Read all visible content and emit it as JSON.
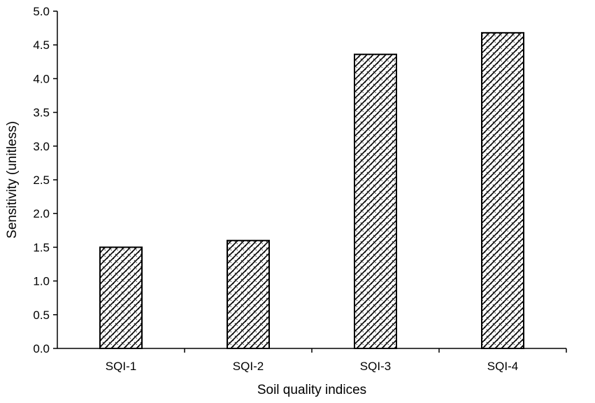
{
  "chart_data": {
    "type": "bar",
    "title": "",
    "xlabel": "Soil quality indices",
    "ylabel": "Sensitivity (unitless)",
    "categories": [
      "SQI-1",
      "SQI-2",
      "SQI-3",
      "SQI-4"
    ],
    "values": [
      1.5,
      1.6,
      4.36,
      4.68
    ],
    "ylim": [
      0,
      5.0
    ],
    "yticks": [
      "0.0",
      "0.5",
      "1.0",
      "1.5",
      "2.0",
      "2.5",
      "3.0",
      "3.5",
      "4.0",
      "4.5",
      "5.0"
    ],
    "grid": false,
    "legend": "none",
    "bar_pattern": "diagonal-crosshatch",
    "colors": {
      "bar_fill": "#ffffff",
      "bar_stroke": "#000000",
      "axis": "#000000"
    }
  }
}
